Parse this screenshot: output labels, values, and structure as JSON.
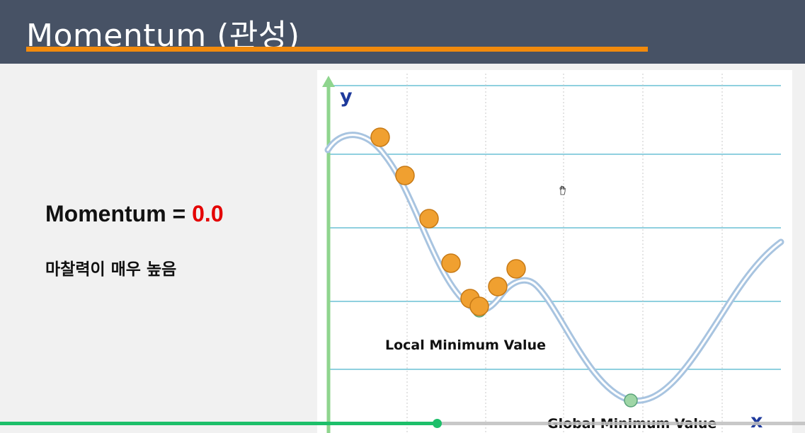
{
  "slide": {
    "title": "Momentum (관성)",
    "momentum_label": "Momentum = ",
    "momentum_value": "0.0",
    "friction_note": "마찰력이 매우 높음"
  },
  "colors": {
    "header_bg": "#475265",
    "title_underline": "#f28a0c",
    "momentum_value": "#e40000",
    "ball_fill": "#f0a030",
    "global_min_marker": "#9fd6a6",
    "curve": "#a8c4e0",
    "grid": "#8fd0df",
    "y_axis": "#8fd58e",
    "axis_label": "#1e3a9c",
    "progress": "#1dbf6a"
  },
  "chart_data": {
    "type": "diagram",
    "y_axis_label": "y",
    "x_axis_label": "x",
    "annotations": {
      "local_min": "Local Minimum Value",
      "global_min": "Global Minimum Value"
    },
    "balls": [
      1,
      2,
      3,
      4,
      5,
      6,
      7,
      8
    ]
  },
  "playback": {
    "progress_fraction": 0.543
  },
  "icons": {
    "cursor": "hand-cursor-icon"
  }
}
